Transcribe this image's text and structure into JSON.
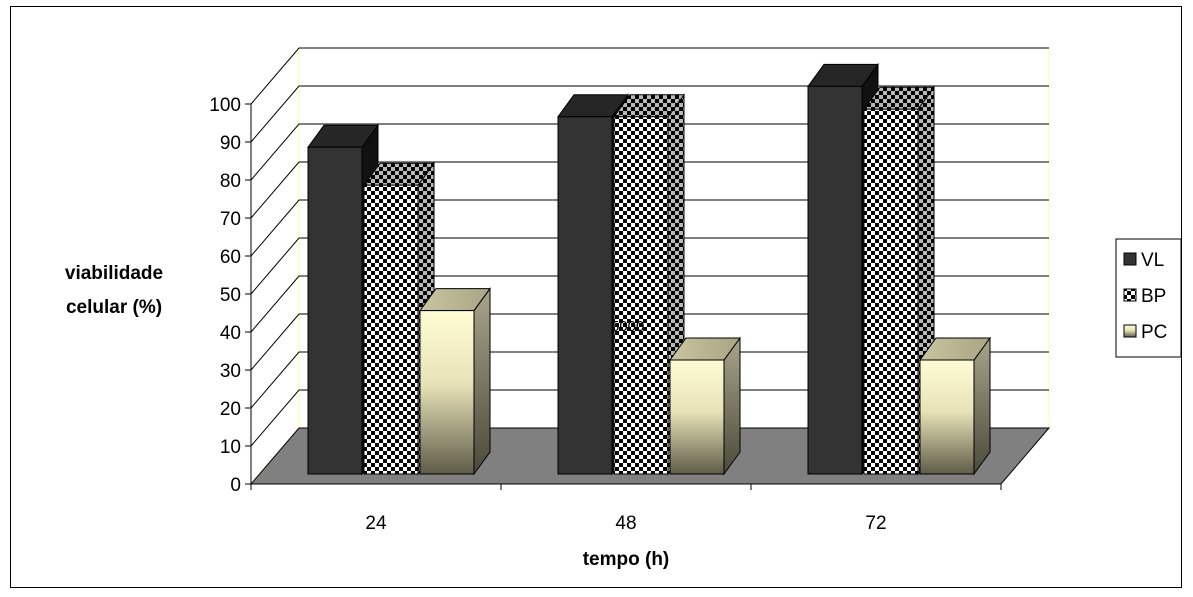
{
  "chart_data": {
    "type": "bar",
    "categories": [
      "24",
      "48",
      "72"
    ],
    "series": [
      {
        "name": "VL",
        "values": [
          86,
          94,
          102
        ],
        "color": "#333333",
        "pattern": "solid-dark"
      },
      {
        "name": "BP",
        "values": [
          76,
          94,
          96
        ],
        "color": "#ffffff",
        "pattern": "checkerboard"
      },
      {
        "name": "PC",
        "values": [
          43,
          30,
          30
        ],
        "color": "#fffcd4",
        "pattern": "gradient-cream"
      }
    ],
    "ylabel": [
      "viabilidade",
      "celular (%)"
    ],
    "xlabel": "tempo (h)",
    "yticks": [
      0,
      10,
      20,
      30,
      40,
      50,
      60,
      70,
      80,
      90,
      100
    ],
    "ylim": [
      0,
      100
    ],
    "grid": true,
    "legend_position": "right",
    "annotation": "5000",
    "style": "3d-clustered-column"
  }
}
